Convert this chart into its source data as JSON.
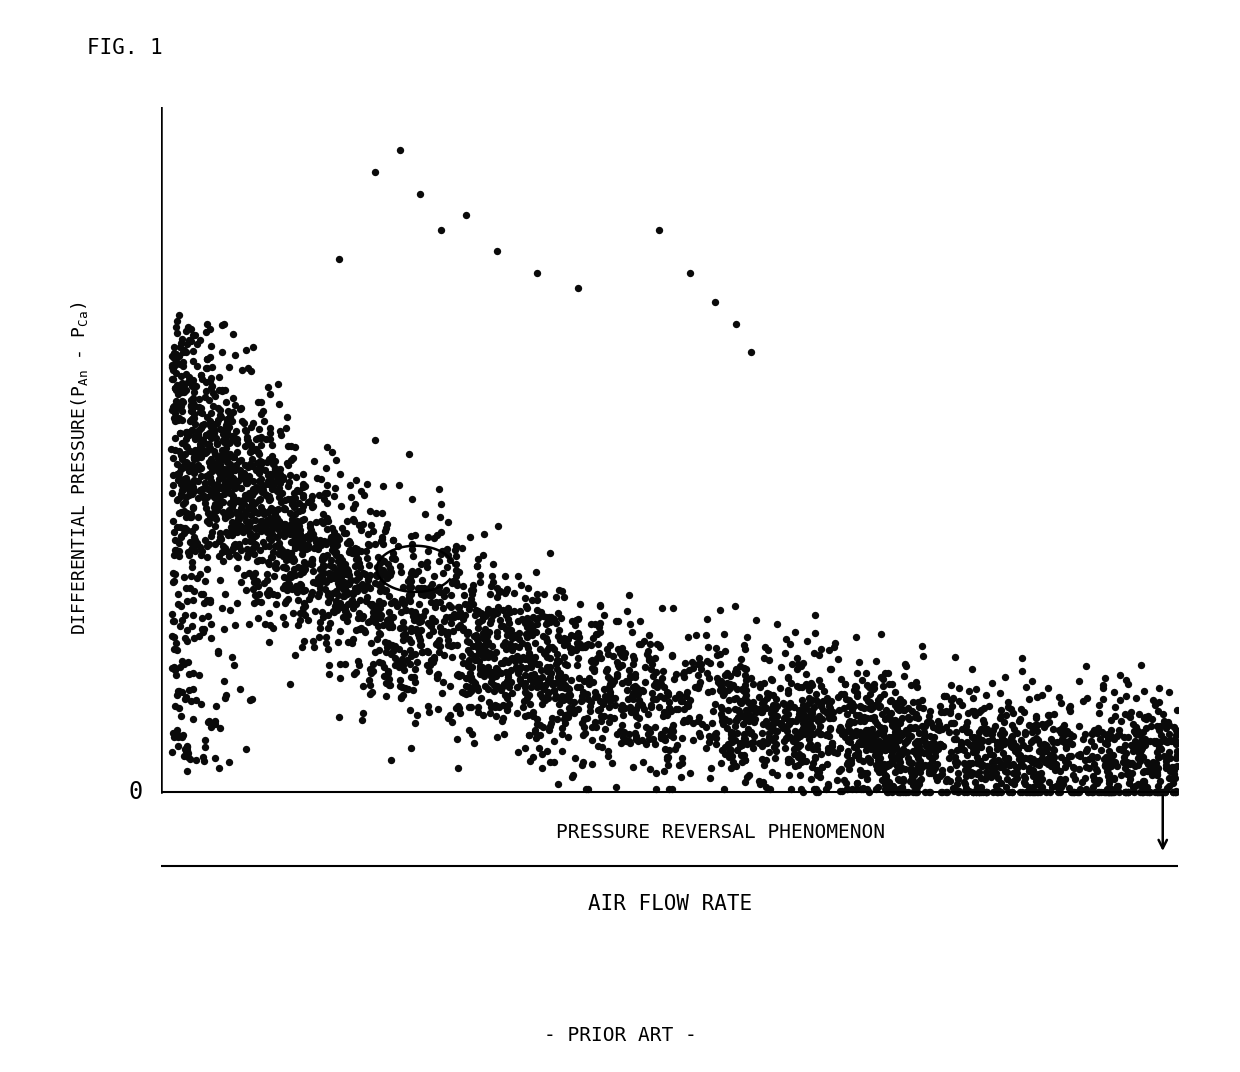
{
  "fig_label": "FIG. 1",
  "prior_art_label": "- PRIOR ART -",
  "xlabel": "AIR FLOW RATE",
  "zero_label": "0",
  "annotation_text": "PRESSURE REVERSAL PHENOMENON",
  "background_color": "#ffffff",
  "dot_color": "#0a0a0a",
  "xlim": [
    0,
    10
  ],
  "ylim": [
    -1.2,
    9.5
  ],
  "seed": 42,
  "dot_size": 28,
  "ylabel_parts": [
    "DIFFERENTIAL PRESSURE(P",
    "An",
    " - P",
    "Ca",
    ")"
  ]
}
